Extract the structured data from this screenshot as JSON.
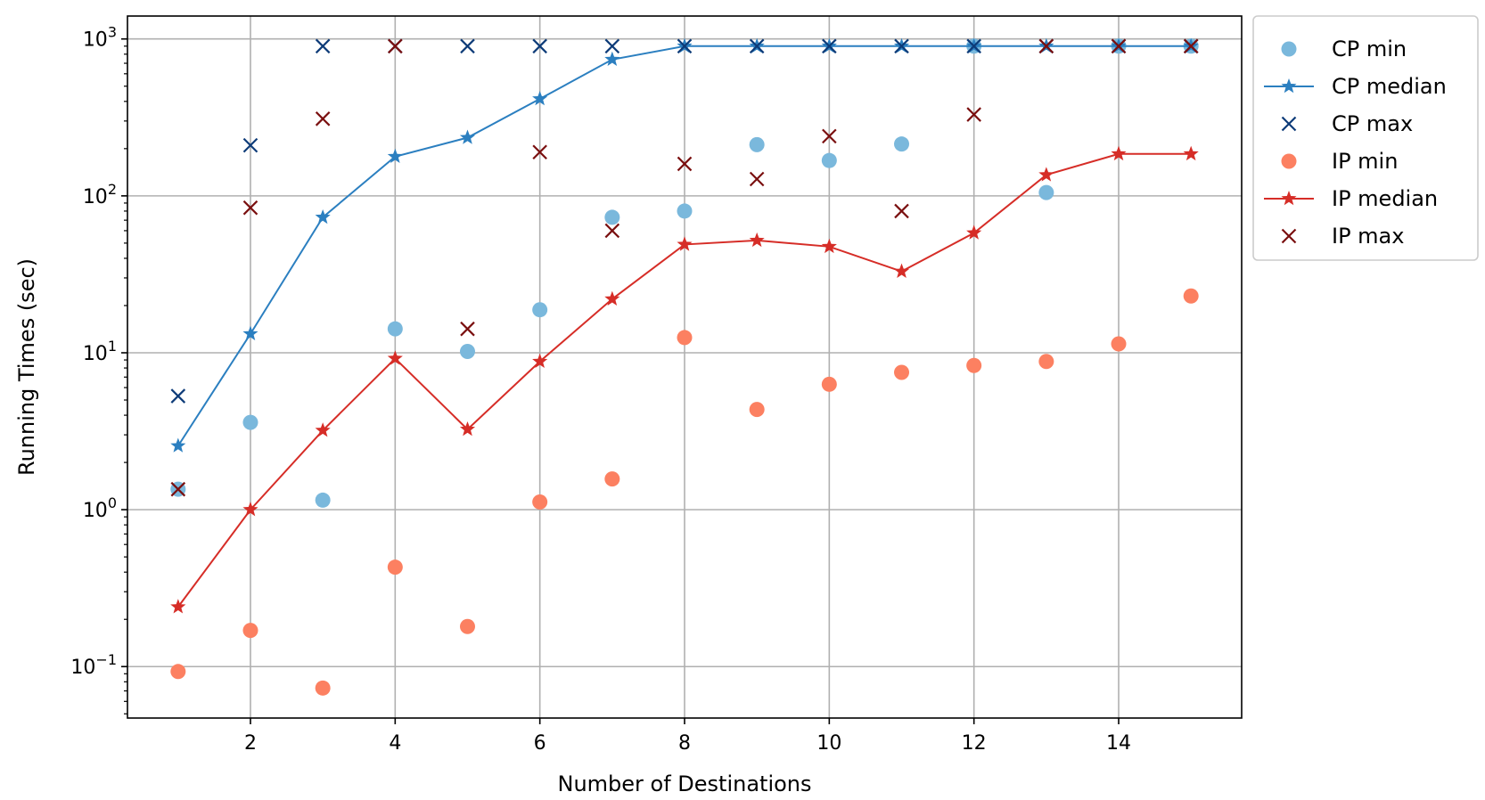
{
  "chart_data": {
    "type": "line",
    "title": "",
    "xlabel": "Number of Destinations",
    "ylabel": "Running Times (sec)",
    "y_scale": "log",
    "xlim": [
      0.3,
      15.7
    ],
    "ylim": [
      0.047,
      1400
    ],
    "x_ticks": [
      2,
      4,
      6,
      8,
      10,
      12,
      14
    ],
    "y_ticks": [
      0.1,
      1,
      10,
      100,
      1000
    ],
    "y_tick_exponents": [
      "−1",
      "0",
      "1",
      "2",
      "3"
    ],
    "y_tick_base": "10",
    "grid": true,
    "legend_position": "outside-top-right",
    "x": [
      1,
      2,
      3,
      4,
      5,
      6,
      7,
      8,
      9,
      10,
      11,
      12,
      13,
      14,
      15
    ],
    "series": [
      {
        "name": "CP min",
        "style": "marker-circle",
        "color": "#7ab8dc",
        "values": [
          1.35,
          3.6,
          1.15,
          14.2,
          10.2,
          18.8,
          73,
          80,
          212,
          168,
          214,
          900,
          105,
          900,
          900
        ]
      },
      {
        "name": "CP median",
        "style": "line-star",
        "color": "#2b7fc0",
        "values": [
          2.55,
          13.2,
          73,
          178,
          235,
          415,
          740,
          900,
          900,
          900,
          900,
          900,
          900,
          900,
          900
        ]
      },
      {
        "name": "CP max",
        "style": "marker-x",
        "color": "#0d3b78",
        "values": [
          5.3,
          210,
          900,
          900,
          900,
          900,
          900,
          900,
          900,
          900,
          900,
          900,
          900,
          900,
          900
        ]
      },
      {
        "name": "IP min",
        "style": "marker-circle",
        "color": "#fc8061",
        "values": [
          0.093,
          0.17,
          0.073,
          0.43,
          0.18,
          1.12,
          1.57,
          12.5,
          4.35,
          6.3,
          7.5,
          8.3,
          8.8,
          11.4,
          23
        ]
      },
      {
        "name": "IP median",
        "style": "line-star",
        "color": "#d62d27",
        "values": [
          0.24,
          1.0,
          3.2,
          9.2,
          3.25,
          8.8,
          22,
          49,
          52,
          47.5,
          33,
          58,
          136,
          185,
          185
        ]
      },
      {
        "name": "IP max",
        "style": "marker-x",
        "color": "#7a0f0f",
        "values": [
          1.35,
          84,
          310,
          900,
          14.2,
          190,
          60,
          160,
          128,
          240,
          80,
          330,
          900,
          900,
          900
        ]
      }
    ]
  }
}
